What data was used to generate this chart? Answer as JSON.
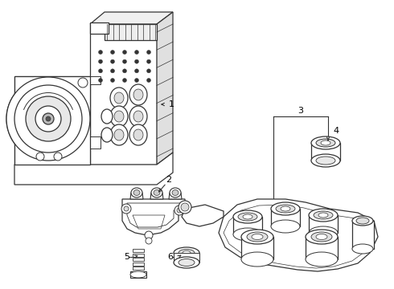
{
  "background_color": "#ffffff",
  "line_color": "#333333",
  "text_color": "#000000",
  "fig_width": 4.9,
  "fig_height": 3.6,
  "dpi": 100
}
